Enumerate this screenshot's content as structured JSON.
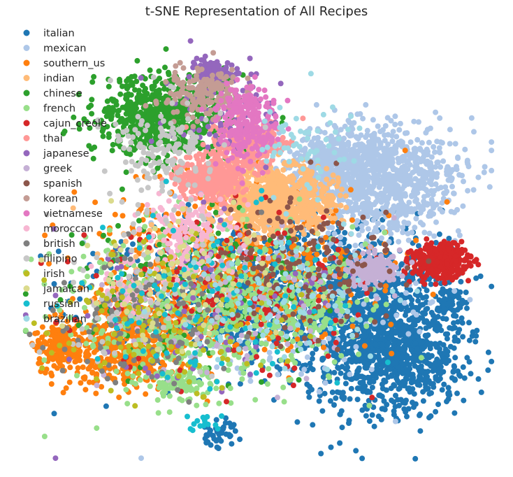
{
  "chart_data": {
    "type": "scatter",
    "title": "t-SNE Representation of All Recipes",
    "xlabel": "",
    "ylabel": "",
    "grid": false,
    "axes_visible": false,
    "legend_placement": "top-left",
    "marker_radius": 4,
    "series": [
      {
        "name": "italian",
        "color": "#1f77b4",
        "clusters": [
          {
            "cx": 0.75,
            "cy": 0.68,
            "sx": 0.08,
            "sy": 0.1,
            "n": 900
          },
          {
            "cx": 0.82,
            "cy": 0.74,
            "sx": 0.06,
            "sy": 0.05,
            "n": 350
          },
          {
            "cx": 0.6,
            "cy": 0.58,
            "sx": 0.12,
            "sy": 0.08,
            "n": 600
          },
          {
            "cx": 0.9,
            "cy": 0.62,
            "sx": 0.02,
            "sy": 0.015,
            "n": 60
          },
          {
            "cx": 0.4,
            "cy": 0.62,
            "sx": 0.14,
            "sy": 0.08,
            "n": 400
          },
          {
            "cx": 0.41,
            "cy": 0.92,
            "sx": 0.025,
            "sy": 0.015,
            "n": 40
          }
        ]
      },
      {
        "name": "mexican",
        "color": "#aec7e8",
        "clusters": [
          {
            "cx": 0.74,
            "cy": 0.34,
            "sx": 0.09,
            "sy": 0.06,
            "n": 1100
          },
          {
            "cx": 0.67,
            "cy": 0.3,
            "sx": 0.04,
            "sy": 0.03,
            "n": 200
          },
          {
            "cx": 0.55,
            "cy": 0.62,
            "sx": 0.15,
            "sy": 0.1,
            "n": 200
          }
        ]
      },
      {
        "name": "southern_us",
        "color": "#ff7f0e",
        "clusters": [
          {
            "cx": 0.08,
            "cy": 0.72,
            "sx": 0.025,
            "sy": 0.03,
            "n": 180
          },
          {
            "cx": 0.25,
            "cy": 0.7,
            "sx": 0.06,
            "sy": 0.05,
            "n": 350
          },
          {
            "cx": 0.45,
            "cy": 0.55,
            "sx": 0.14,
            "sy": 0.09,
            "n": 600
          },
          {
            "cx": 0.2,
            "cy": 0.76,
            "sx": 0.06,
            "sy": 0.03,
            "n": 150
          }
        ]
      },
      {
        "name": "indian",
        "color": "#ffbb78",
        "clusters": [
          {
            "cx": 0.53,
            "cy": 0.39,
            "sx": 0.06,
            "sy": 0.035,
            "n": 900
          },
          {
            "cx": 0.3,
            "cy": 0.55,
            "sx": 0.08,
            "sy": 0.08,
            "n": 60
          }
        ]
      },
      {
        "name": "chinese",
        "color": "#2ca02c",
        "clusters": [
          {
            "cx": 0.3,
            "cy": 0.2,
            "sx": 0.07,
            "sy": 0.045,
            "n": 700
          },
          {
            "cx": 0.38,
            "cy": 0.58,
            "sx": 0.14,
            "sy": 0.09,
            "n": 150
          }
        ]
      },
      {
        "name": "french",
        "color": "#98df8a",
        "clusters": [
          {
            "cx": 0.38,
            "cy": 0.64,
            "sx": 0.14,
            "sy": 0.09,
            "n": 550
          },
          {
            "cx": 0.33,
            "cy": 0.8,
            "sx": 0.04,
            "sy": 0.02,
            "n": 100
          },
          {
            "cx": 0.58,
            "cy": 0.6,
            "sx": 0.08,
            "sy": 0.06,
            "n": 150
          }
        ]
      },
      {
        "name": "cajun_creole",
        "color": "#d62728",
        "clusters": [
          {
            "cx": 0.88,
            "cy": 0.53,
            "sx": 0.03,
            "sy": 0.02,
            "n": 300
          },
          {
            "cx": 0.45,
            "cy": 0.6,
            "sx": 0.15,
            "sy": 0.1,
            "n": 150
          }
        ]
      },
      {
        "name": "thai",
        "color": "#ff9896",
        "clusters": [
          {
            "cx": 0.4,
            "cy": 0.34,
            "sx": 0.035,
            "sy": 0.025,
            "n": 350
          },
          {
            "cx": 0.48,
            "cy": 0.27,
            "sx": 0.04,
            "sy": 0.03,
            "n": 250
          }
        ]
      },
      {
        "name": "japanese",
        "color": "#9467bd",
        "clusters": [
          {
            "cx": 0.4,
            "cy": 0.105,
            "sx": 0.02,
            "sy": 0.015,
            "n": 140
          },
          {
            "cx": 0.42,
            "cy": 0.18,
            "sx": 0.06,
            "sy": 0.05,
            "n": 80
          },
          {
            "cx": 0.35,
            "cy": 0.62,
            "sx": 0.14,
            "sy": 0.1,
            "n": 80
          }
        ]
      },
      {
        "name": "greek",
        "color": "#c5b0d5",
        "clusters": [
          {
            "cx": 0.74,
            "cy": 0.55,
            "sx": 0.025,
            "sy": 0.018,
            "n": 180
          },
          {
            "cx": 0.45,
            "cy": 0.6,
            "sx": 0.14,
            "sy": 0.1,
            "n": 100
          }
        ]
      },
      {
        "name": "spanish",
        "color": "#8c564b",
        "clusters": [
          {
            "cx": 0.6,
            "cy": 0.55,
            "sx": 0.1,
            "sy": 0.08,
            "n": 150
          }
        ]
      },
      {
        "name": "korean",
        "color": "#c49c94",
        "clusters": [
          {
            "cx": 0.38,
            "cy": 0.15,
            "sx": 0.04,
            "sy": 0.03,
            "n": 160
          }
        ]
      },
      {
        "name": "vietnamese",
        "color": "#e377c2",
        "clusters": [
          {
            "cx": 0.48,
            "cy": 0.22,
            "sx": 0.035,
            "sy": 0.04,
            "n": 200
          },
          {
            "cx": 0.47,
            "cy": 0.17,
            "sx": 0.02,
            "sy": 0.02,
            "n": 60
          }
        ]
      },
      {
        "name": "moroccan",
        "color": "#f7b6d2",
        "clusters": [
          {
            "cx": 0.35,
            "cy": 0.47,
            "sx": 0.04,
            "sy": 0.04,
            "n": 150
          },
          {
            "cx": 0.22,
            "cy": 0.6,
            "sx": 0.03,
            "sy": 0.03,
            "n": 50
          }
        ]
      },
      {
        "name": "british",
        "color": "#7f7f7f",
        "clusters": [
          {
            "cx": 0.25,
            "cy": 0.66,
            "sx": 0.1,
            "sy": 0.08,
            "n": 120
          }
        ]
      },
      {
        "name": "filipino",
        "color": "#c7c7c7",
        "clusters": [
          {
            "cx": 0.3,
            "cy": 0.28,
            "sx": 0.05,
            "sy": 0.06,
            "n": 150
          },
          {
            "cx": 0.25,
            "cy": 0.6,
            "sx": 0.1,
            "sy": 0.1,
            "n": 80
          }
        ]
      },
      {
        "name": "irish",
        "color": "#bcbd22",
        "clusters": [
          {
            "cx": 0.3,
            "cy": 0.66,
            "sx": 0.12,
            "sy": 0.08,
            "n": 120
          }
        ]
      },
      {
        "name": "jamaican",
        "color": "#dbdb8d",
        "clusters": [
          {
            "cx": 0.35,
            "cy": 0.58,
            "sx": 0.12,
            "sy": 0.08,
            "n": 80
          }
        ]
      },
      {
        "name": "russian",
        "color": "#17becf",
        "clusters": [
          {
            "cx": 0.4,
            "cy": 0.62,
            "sx": 0.15,
            "sy": 0.1,
            "n": 90
          },
          {
            "cx": 0.38,
            "cy": 0.9,
            "sx": 0.02,
            "sy": 0.012,
            "n": 15
          }
        ]
      },
      {
        "name": "brazilian",
        "color": "#9edae5",
        "clusters": [
          {
            "cx": 0.6,
            "cy": 0.28,
            "sx": 0.05,
            "sy": 0.06,
            "n": 60
          },
          {
            "cx": 0.55,
            "cy": 0.62,
            "sx": 0.12,
            "sy": 0.08,
            "n": 80
          }
        ]
      }
    ]
  }
}
